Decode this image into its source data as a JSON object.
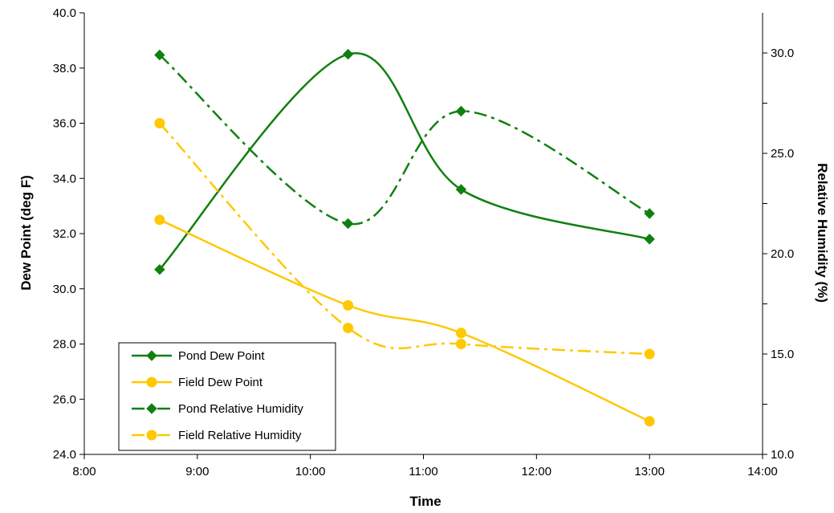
{
  "chart_data": {
    "type": "line",
    "xlabel": "Time",
    "ylabel": "Dew Point (deg F)",
    "y2label": "Relative Humidity (%)",
    "xlim": [
      8,
      14
    ],
    "ylim": [
      24,
      40
    ],
    "y2lim": [
      10,
      32
    ],
    "x_ticks": [
      "8:00",
      "9:00",
      "10:00",
      "11:00",
      "12:00",
      "13:00",
      "14:00"
    ],
    "y_ticks": [
      "24.0",
      "26.0",
      "28.0",
      "30.0",
      "32.0",
      "34.0",
      "36.0",
      "38.0",
      "40.0"
    ],
    "y2_ticks": [
      "10.0",
      "15.0",
      "20.0",
      "25.0",
      "30.0"
    ],
    "legend_position": "lower-left",
    "grid": false,
    "series": [
      {
        "name": "Pond Dew Point",
        "axis": "left",
        "color": "#108010",
        "marker": "diamond",
        "dash": "solid",
        "x": [
          "8:40",
          "10:20",
          "11:20",
          "13:00"
        ],
        "values": [
          30.7,
          38.5,
          33.6,
          31.8
        ]
      },
      {
        "name": "Field Dew Point",
        "axis": "left",
        "color": "#FFC800",
        "marker": "circle",
        "dash": "solid",
        "x": [
          "8:40",
          "10:20",
          "11:20",
          "13:00"
        ],
        "values": [
          32.5,
          29.4,
          28.4,
          25.2
        ]
      },
      {
        "name": "Pond Relative Humidity",
        "axis": "right",
        "color": "#108010",
        "marker": "diamond",
        "dash": "dashdot",
        "x": [
          "8:40",
          "10:20",
          "11:20",
          "13:00"
        ],
        "values": [
          29.9,
          21.5,
          27.1,
          22.0
        ]
      },
      {
        "name": "Field Relative Humidity",
        "axis": "right",
        "color": "#FFC800",
        "marker": "circle",
        "dash": "dashdot",
        "x": [
          "8:40",
          "10:20",
          "11:20",
          "13:00"
        ],
        "values": [
          26.5,
          16.3,
          15.5,
          15.0
        ]
      }
    ]
  }
}
